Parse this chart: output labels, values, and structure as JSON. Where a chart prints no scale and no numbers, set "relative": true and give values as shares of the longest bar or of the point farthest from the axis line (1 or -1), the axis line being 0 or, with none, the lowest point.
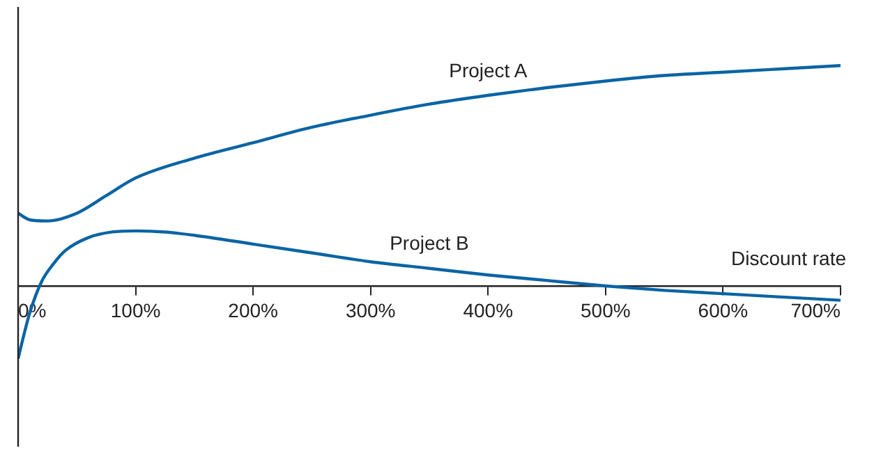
{
  "chart_data": {
    "type": "line",
    "relative": true,
    "xlabel": "Discount rate",
    "xlim": [
      0,
      700
    ],
    "xticks": [
      {
        "value": 0,
        "label": "0%"
      },
      {
        "value": 100,
        "label": "100%"
      },
      {
        "value": 200,
        "label": "200%"
      },
      {
        "value": 300,
        "label": "300%"
      },
      {
        "value": 400,
        "label": "400%"
      },
      {
        "value": 500,
        "label": "500%"
      },
      {
        "value": 600,
        "label": "600%"
      },
      {
        "value": 700,
        "label": "700%"
      }
    ],
    "series": [
      {
        "name": "Project A",
        "color": "#0a64a4",
        "x": [
          0,
          10,
          25,
          50,
          75,
          100,
          150,
          200,
          250,
          300,
          350,
          400,
          450,
          500,
          550,
          600,
          650,
          700
        ],
        "values": [
          0.33,
          0.3,
          0.295,
          0.33,
          0.41,
          0.49,
          0.58,
          0.65,
          0.72,
          0.775,
          0.825,
          0.865,
          0.9,
          0.93,
          0.955,
          0.97,
          0.985,
          1
        ]
      },
      {
        "name": "Project B",
        "color": "#0a64a4",
        "x": [
          0,
          5,
          10,
          20,
          30,
          40,
          60,
          80,
          100,
          125,
          150,
          200,
          250,
          300,
          350,
          400,
          450,
          500,
          550,
          600,
          650,
          700
        ],
        "values": [
          -0.33,
          -0.22,
          -0.12,
          0.02,
          0.1,
          0.16,
          0.22,
          0.245,
          0.25,
          0.245,
          0.23,
          0.19,
          0.15,
          0.11,
          0.08,
          0.05,
          0.025,
          0,
          -0.02,
          -0.035,
          -0.05,
          -0.065
        ]
      }
    ]
  }
}
